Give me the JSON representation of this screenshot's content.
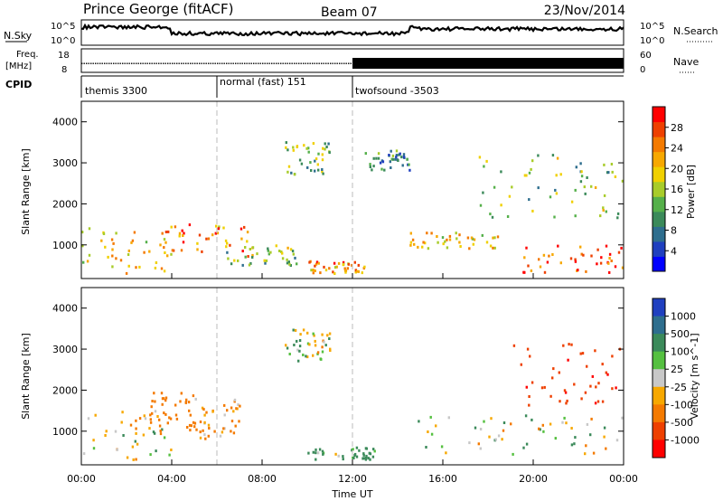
{
  "header": {
    "station": "Prince George (fitACF)",
    "beam": "Beam 07",
    "date": "23/Nov/2014"
  },
  "top_panels": {
    "nsky_label": "N.Sky",
    "nsky_ticks": [
      "10^5",
      "10^0"
    ],
    "nsearch_label": "N.Search",
    "nsearch_ticks": [
      "10^5",
      "10^0"
    ],
    "freq_label_1": "Freq.",
    "freq_label_2": "[MHz]",
    "freq_ticks": [
      "18",
      "8"
    ],
    "nave_label": "Nave",
    "nave_ticks": [
      "60",
      "0"
    ],
    "cpid_label": "CPID",
    "cpid_segments": [
      {
        "label": "themis 3300",
        "start_hour": 0,
        "end_hour": 6
      },
      {
        "label": "normal (fast) 151",
        "start_hour": 6,
        "end_hour": 12
      },
      {
        "label": "twofsound -3503",
        "start_hour": 12,
        "end_hour": 24
      }
    ]
  },
  "axes": {
    "ylabel": "Slant Range [km]",
    "xlabel": "Time UT",
    "x_ticks": [
      "00:00",
      "04:00",
      "08:00",
      "12:00",
      "16:00",
      "20:00",
      "00:00"
    ],
    "y_ticks": [
      "1000",
      "2000",
      "3000",
      "4000"
    ]
  },
  "power_scale": {
    "label": "Power [dB]",
    "ticks": [
      "4",
      "8",
      "12",
      "16",
      "20",
      "24",
      "28"
    ],
    "colors": [
      "#0000ff",
      "#1f3fbf",
      "#2e6e8e",
      "#3b8a5a",
      "#55b04a",
      "#a8cc2a",
      "#f0d000",
      "#f7a800",
      "#f47a00",
      "#ee4000",
      "#ff0000"
    ]
  },
  "velocity_scale": {
    "label": "Velocity [m s^-1]",
    "ticks": [
      "1000",
      "500",
      "100",
      "25",
      "-25",
      "-100",
      "-500",
      "-1000"
    ],
    "colors": [
      "#2040c0",
      "#2e6e8e",
      "#3b8a5a",
      "#55c040",
      "#c8c8c8",
      "#f7a800",
      "#f47a00",
      "#ee4000",
      "#ff0000"
    ]
  },
  "chart_data": [
    {
      "type": "heatmap",
      "title": "Power",
      "xlabel": "Time UT",
      "ylabel": "Slant Range [km]",
      "xlim": [
        0,
        24
      ],
      "ylim": [
        180,
        4500
      ],
      "colorbar": {
        "label": "Power [dB]",
        "range": [
          0,
          32
        ]
      },
      "echo_regions": [
        {
          "t": [
            0.0,
            4.0
          ],
          "range_km": [
            300,
            1400
          ],
          "power_db": 20
        },
        {
          "t": [
            3.5,
            7.5
          ],
          "range_km": [
            700,
            1500
          ],
          "power_db": 24
        },
        {
          "t": [
            6.0,
            9.5
          ],
          "range_km": [
            500,
            1000
          ],
          "power_db": 14
        },
        {
          "t": [
            9.0,
            11.0
          ],
          "range_km": [
            2700,
            3500
          ],
          "power_db": 14
        },
        {
          "t": [
            12.5,
            14.5
          ],
          "range_km": [
            2800,
            3300
          ],
          "power_db": 10
        },
        {
          "t": [
            10.0,
            12.5
          ],
          "range_km": [
            300,
            600
          ],
          "power_db": 24
        },
        {
          "t": [
            14.5,
            18.5
          ],
          "range_km": [
            900,
            1300
          ],
          "power_db": 20
        },
        {
          "t": [
            19.5,
            24.0
          ],
          "range_km": [
            300,
            1000
          ],
          "power_db": 28
        },
        {
          "t": [
            17.5,
            24.0
          ],
          "range_km": [
            1600,
            3200
          ],
          "power_db": 14
        }
      ]
    },
    {
      "type": "heatmap",
      "title": "Velocity",
      "xlabel": "Time UT",
      "ylabel": "Slant Range [km]",
      "xlim": [
        0,
        24
      ],
      "ylim": [
        180,
        4500
      ],
      "colorbar": {
        "label": "Velocity [m s^-1]",
        "range": [
          -1000,
          1000
        ]
      },
      "echo_regions": [
        {
          "t": [
            0.0,
            4.0
          ],
          "range_km": [
            300,
            1500
          ],
          "velocity": -25
        },
        {
          "t": [
            3.0,
            5.0
          ],
          "range_km": [
            1000,
            2000
          ],
          "velocity": -300
        },
        {
          "t": [
            5.0,
            7.0
          ],
          "range_km": [
            800,
            1800
          ],
          "velocity": -100
        },
        {
          "t": [
            9.0,
            11.0
          ],
          "range_km": [
            2700,
            3500
          ],
          "velocity": 0
        },
        {
          "t": [
            10.0,
            13.0
          ],
          "range_km": [
            300,
            600
          ],
          "velocity": 100
        },
        {
          "t": [
            14.5,
            24.0
          ],
          "range_km": [
            400,
            1400
          ],
          "velocity": 0
        },
        {
          "t": [
            19.0,
            24.0
          ],
          "range_km": [
            1600,
            3200
          ],
          "velocity": -700
        }
      ]
    }
  ]
}
